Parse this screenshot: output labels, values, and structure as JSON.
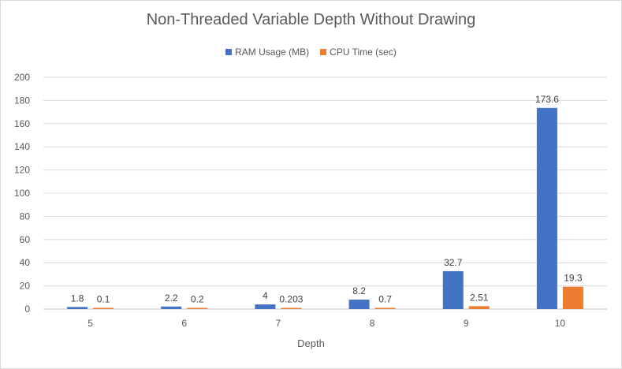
{
  "chart_data": {
    "type": "bar",
    "title": "Non-Threaded Variable Depth Without Drawing",
    "xlabel": "Depth",
    "ylabel": "",
    "categories": [
      "5",
      "6",
      "7",
      "8",
      "9",
      "10"
    ],
    "ylim": [
      0,
      200
    ],
    "yticks": [
      0,
      20,
      40,
      60,
      80,
      100,
      120,
      140,
      160,
      180,
      200
    ],
    "grid": true,
    "legend_position": "top",
    "series": [
      {
        "name": "RAM Usage (MB)",
        "color": "#4472c4",
        "values": [
          1.8,
          2.2,
          4,
          8.2,
          32.7,
          173.6
        ],
        "labels": [
          "1.8",
          "2.2",
          "4",
          "8.2",
          "32.7",
          "173.6"
        ]
      },
      {
        "name": "CPU Time (sec)",
        "color": "#ed7d31",
        "values": [
          0.1,
          0.2,
          0.203,
          0.7,
          2.51,
          19.3
        ],
        "labels": [
          "0.1",
          "0.2",
          "0.203",
          "0.7",
          "2.51",
          "19.3"
        ]
      }
    ]
  }
}
